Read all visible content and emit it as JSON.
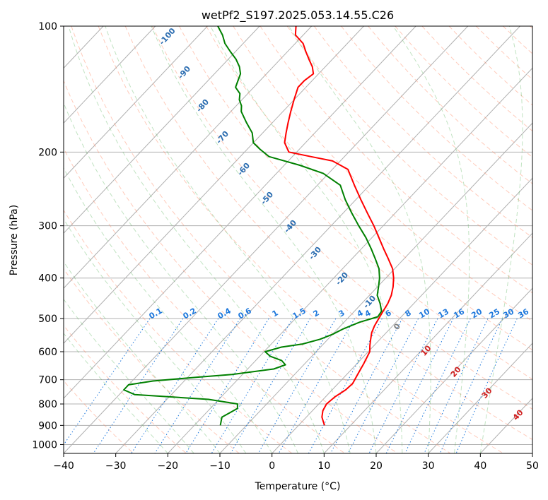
{
  "chart_data": {
    "type": "line",
    "title": "wetPf2_S197.2025.053.14.55.C26",
    "xlabel": "Temperature (°C)",
    "ylabel": "Pressure (hPa)",
    "xlim": [
      -40,
      50
    ],
    "ylim": [
      1050,
      100
    ],
    "y_scale": "log",
    "grid": true,
    "x_ticks": [
      -40,
      -30,
      -20,
      -10,
      0,
      10,
      20,
      30,
      40,
      50
    ],
    "y_ticks": [
      100,
      200,
      300,
      400,
      500,
      600,
      700,
      800,
      900,
      1000
    ],
    "series": [
      {
        "key": "temperature",
        "color": "#ff0000",
        "points": [
          [
            5.0,
            900
          ],
          [
            4.0,
            880
          ],
          [
            3.0,
            860
          ],
          [
            2.0,
            830
          ],
          [
            1.5,
            800
          ],
          [
            1.8,
            770
          ],
          [
            2.6,
            740
          ],
          [
            2.8,
            715
          ],
          [
            2.3,
            690
          ],
          [
            1.8,
            665
          ],
          [
            1.3,
            640
          ],
          [
            0.8,
            620
          ],
          [
            0.3,
            600
          ],
          [
            -0.8,
            580
          ],
          [
            -1.8,
            560
          ],
          [
            -2.8,
            540
          ],
          [
            -3.5,
            520
          ],
          [
            -4.0,
            500
          ],
          [
            -4.5,
            480
          ],
          [
            -5.0,
            460
          ],
          [
            -5.8,
            440
          ],
          [
            -7.0,
            420
          ],
          [
            -8.5,
            400
          ],
          [
            -10.4,
            380
          ],
          [
            -13.0,
            360
          ],
          [
            -15.8,
            340
          ],
          [
            -18.7,
            320
          ],
          [
            -21.8,
            300
          ],
          [
            -25.3,
            280
          ],
          [
            -29.0,
            260
          ],
          [
            -32.9,
            240
          ],
          [
            -37.0,
            220
          ],
          [
            -41.5,
            210
          ],
          [
            -46.5,
            205
          ],
          [
            -51.5,
            200
          ],
          [
            -54.0,
            190
          ],
          [
            -55.5,
            180
          ],
          [
            -57.0,
            170
          ],
          [
            -58.5,
            160
          ],
          [
            -60.0,
            150
          ],
          [
            -61.5,
            140
          ],
          [
            -61.5,
            135
          ],
          [
            -61.0,
            130
          ],
          [
            -62.5,
            125
          ],
          [
            -64.5,
            120
          ],
          [
            -66.5,
            115
          ],
          [
            -68.5,
            110
          ],
          [
            -71.5,
            105
          ],
          [
            -73.0,
            100
          ]
        ]
      },
      {
        "key": "dewpoint",
        "color": "#008000",
        "points": [
          [
            -15.0,
            900
          ],
          [
            -15.6,
            880
          ],
          [
            -16.2,
            860
          ],
          [
            -15.5,
            840
          ],
          [
            -14.8,
            820
          ],
          [
            -15.6,
            800
          ],
          [
            -22.0,
            780
          ],
          [
            -37.0,
            760
          ],
          [
            -40.0,
            740
          ],
          [
            -40.0,
            730
          ],
          [
            -40.0,
            720
          ],
          [
            -36.0,
            705
          ],
          [
            -28.0,
            690
          ],
          [
            -22.0,
            680
          ],
          [
            -15.0,
            660
          ],
          [
            -13.5,
            645
          ],
          [
            -15.0,
            630
          ],
          [
            -18.0,
            615
          ],
          [
            -19.8,
            600
          ],
          [
            -17.5,
            585
          ],
          [
            -14.0,
            575
          ],
          [
            -11.5,
            560
          ],
          [
            -10.0,
            545
          ],
          [
            -9.0,
            530
          ],
          [
            -7.0,
            510
          ],
          [
            -4.5,
            495
          ],
          [
            -4.8,
            480
          ],
          [
            -6.5,
            460
          ],
          [
            -8.5,
            440
          ],
          [
            -9.8,
            420
          ],
          [
            -11.2,
            400
          ],
          [
            -13.0,
            380
          ],
          [
            -15.5,
            360
          ],
          [
            -18.2,
            340
          ],
          [
            -21.2,
            320
          ],
          [
            -24.7,
            300
          ],
          [
            -28.3,
            280
          ],
          [
            -32.0,
            260
          ],
          [
            -35.6,
            240
          ],
          [
            -41.0,
            225
          ],
          [
            -47.0,
            215
          ],
          [
            -54.5,
            205
          ],
          [
            -57.5,
            197
          ],
          [
            -60.0,
            190
          ],
          [
            -62.0,
            180
          ],
          [
            -65.0,
            170
          ],
          [
            -68.0,
            160
          ],
          [
            -69.0,
            155
          ],
          [
            -70.5,
            150
          ],
          [
            -71.5,
            145
          ],
          [
            -73.5,
            140
          ],
          [
            -75.0,
            130
          ],
          [
            -76.5,
            125
          ],
          [
            -78.5,
            120
          ],
          [
            -81.0,
            115
          ],
          [
            -83.5,
            110
          ],
          [
            -85.5,
            105
          ],
          [
            -88.0,
            100
          ]
        ]
      }
    ],
    "mixing_ratio_labels": [
      "0.1",
      "0.2",
      "0.4",
      "0.6",
      "1",
      "1.5",
      "2",
      "3",
      "4",
      "4",
      "6",
      "8",
      "10",
      "13",
      "16",
      "20",
      "25",
      "30",
      "36"
    ],
    "isotherm_labels": [
      "-100",
      "-90",
      "-80",
      "-70",
      "-60",
      "-50",
      "-40",
      "-30",
      "-20",
      "-10",
      "0",
      "10",
      "20",
      "30",
      "40"
    ],
    "colors": {
      "isotherm_cold": "#2a6cb0",
      "isotherm_warm": "#d02020",
      "isotherm_zero": "#808080",
      "mixing_ratio": "#1e78dc"
    }
  }
}
